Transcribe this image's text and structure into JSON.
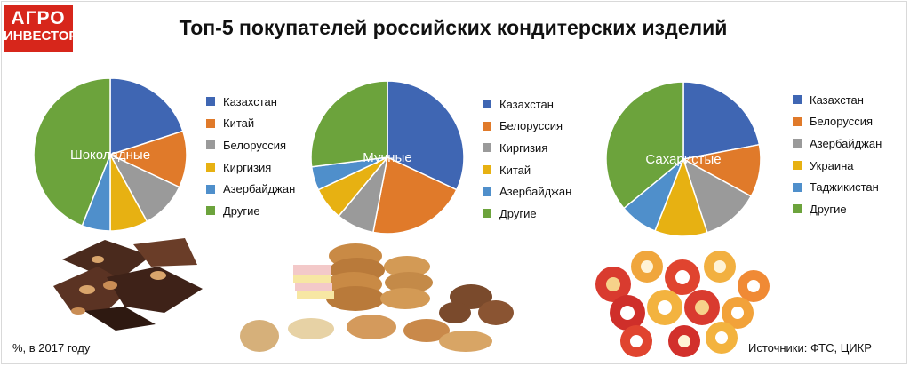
{
  "logo": {
    "line1": "АГРО",
    "line2": "ИНВЕСТОР"
  },
  "title": "Топ-5 покупателей российских кондитерских изделий",
  "footer": {
    "left": "%, в 2017 году",
    "right": "Источники: ФТС, ЦИКР"
  },
  "colors": {
    "blue": "#3f66b3",
    "orange": "#e07a2a",
    "gray": "#9a9a9a",
    "yellow": "#e7b112",
    "lightblue": "#4f8fcb",
    "green": "#6ca33c"
  },
  "chart_data": [
    {
      "type": "pie",
      "center_label": "Шоколадные",
      "categories": [
        "Казахстан",
        "Китай",
        "Белоруссия",
        "Киргизия",
        "Азербайджан",
        "Другие"
      ],
      "values": [
        20,
        12,
        10,
        8,
        6,
        44
      ],
      "colors": [
        "#3f66b3",
        "#e07a2a",
        "#9a9a9a",
        "#e7b112",
        "#4f8fcb",
        "#6ca33c"
      ]
    },
    {
      "type": "pie",
      "center_label": "Мучные",
      "categories": [
        "Казахстан",
        "Белоруссия",
        "Киргизия",
        "Китай",
        "Азербайджан",
        "Другие"
      ],
      "values": [
        32,
        21,
        8,
        7,
        5,
        27
      ],
      "colors": [
        "#3f66b3",
        "#e07a2a",
        "#9a9a9a",
        "#e7b112",
        "#4f8fcb",
        "#6ca33c"
      ]
    },
    {
      "type": "pie",
      "center_label": "Сахаристые",
      "categories": [
        "Казахстан",
        "Белоруссия",
        "Азербайджан",
        "Украина",
        "Таджикистан",
        "Другие"
      ],
      "values": [
        22,
        11,
        12,
        11,
        8,
        36
      ],
      "colors": [
        "#3f66b3",
        "#e07a2a",
        "#9a9a9a",
        "#e7b112",
        "#4f8fcb",
        "#6ca33c"
      ]
    }
  ]
}
